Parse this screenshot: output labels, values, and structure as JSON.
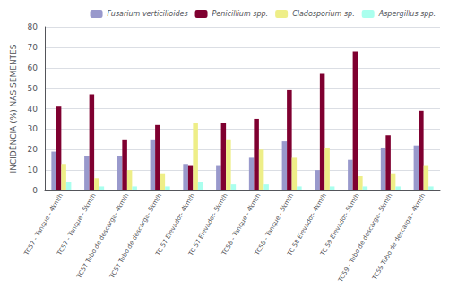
{
  "chart_data": {
    "type": "bar",
    "ylabel": "INCIDÊNCIA (%) NAS SEMENTES",
    "categories": [
      "TC57 - Tanque - 4km/h",
      "TC57 - Tanque - 5km/h",
      "TC57 Tubo de descarga- 4km/h",
      "TC57 Tubo de descarga- 5km/h",
      "TC 57 Elevador- 4km/h",
      "TC 57 Elevador- 5km/h",
      "TC58 - Tanque - 4km/h",
      "TC58 - Tanque - 5km/h",
      "TC 58 Elevador- 4km/h",
      "TC 59 Elevador- 5km/h",
      "TC59 - Tubo de descarga- 5km/h",
      "TC59 Tubo de descarga - 4km/h"
    ],
    "series": [
      {
        "name": "Fusarium verticilioides",
        "color": "#9999cc",
        "values": [
          19,
          17,
          17,
          25,
          13,
          12,
          16,
          24,
          10,
          15,
          21,
          22
        ]
      },
      {
        "name": "Penicillium spp.",
        "color": "#7f0030",
        "values": [
          41,
          47,
          25,
          32,
          12,
          33,
          35,
          49,
          57,
          68,
          27,
          39
        ]
      },
      {
        "name": "Cladosporium sp.",
        "color": "#eeee88",
        "values": [
          13,
          6,
          10,
          8,
          33,
          25,
          20,
          16,
          21,
          7,
          8,
          12
        ]
      },
      {
        "name": "Aspergillus spp.",
        "color": "#aaffee",
        "values": [
          4,
          2,
          2,
          2,
          4,
          3,
          3,
          2,
          2,
          2,
          2,
          2
        ]
      }
    ],
    "ylim": [
      0,
      80
    ],
    "yticks": [
      0,
      10,
      20,
      30,
      40,
      50,
      60,
      70,
      80
    ],
    "grid": true,
    "legend": "upper right"
  }
}
